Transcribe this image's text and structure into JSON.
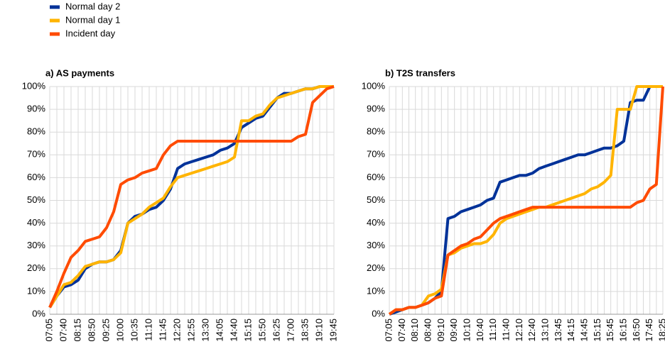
{
  "chart_data": [
    {
      "type": "line",
      "title": "a) AS payments",
      "categories": [
        "07:05",
        null,
        "07:40",
        null,
        "08:15",
        null,
        "08:50",
        null,
        "09:25",
        null,
        "10:00",
        null,
        "10:35",
        null,
        "11:10",
        null,
        "11:45",
        null,
        "12:20",
        null,
        "12:55",
        null,
        "13:30",
        null,
        "14:05",
        null,
        "14:40",
        null,
        "15:15",
        null,
        "15:50",
        null,
        "16:25",
        null,
        "17:00",
        null,
        "18:35",
        null,
        "19:10",
        null,
        "19:45"
      ],
      "series": [
        {
          "name": "Normal day 2",
          "color": "#003299",
          "values": [
            3,
            8,
            12,
            13,
            15,
            20,
            22,
            23,
            23,
            24,
            28,
            40,
            43,
            44,
            46,
            47,
            50,
            55,
            64,
            66,
            67,
            68,
            69,
            70,
            72,
            73,
            75,
            82,
            84,
            86,
            87,
            91,
            95,
            97,
            97,
            98,
            99,
            99,
            100,
            100,
            100
          ]
        },
        {
          "name": "Normal day 1",
          "color": "#ffb400",
          "values": [
            3,
            8,
            13,
            14,
            17,
            21,
            22,
            23,
            23,
            24,
            27,
            40,
            42,
            44,
            47,
            49,
            51,
            56,
            60,
            61,
            62,
            63,
            64,
            65,
            66,
            67,
            69,
            85,
            85,
            87,
            88,
            92,
            95,
            96,
            97,
            98,
            99,
            99,
            100,
            100,
            100
          ]
        },
        {
          "name": "Incident day",
          "color": "#ff4b00",
          "values": [
            3,
            10,
            18,
            25,
            28,
            32,
            33,
            34,
            38,
            45,
            57,
            59,
            60,
            62,
            63,
            64,
            70,
            74,
            76,
            76,
            76,
            76,
            76,
            76,
            76,
            76,
            76,
            76,
            76,
            76,
            76,
            76,
            76,
            76,
            76,
            78,
            79,
            93,
            96,
            99,
            100
          ]
        }
      ],
      "ylim": [
        0,
        100
      ],
      "yticks": [
        {
          "value": 0,
          "label": "0%"
        },
        {
          "value": 10,
          "label": "10%"
        },
        {
          "value": 20,
          "label": "20%"
        },
        {
          "value": 30,
          "label": "30%"
        },
        {
          "value": 40,
          "label": "40%"
        },
        {
          "value": 50,
          "label": "50%"
        },
        {
          "value": 60,
          "label": "60%"
        },
        {
          "value": 70,
          "label": "70%"
        },
        {
          "value": 80,
          "label": "80%"
        },
        {
          "value": 90,
          "label": "90%"
        },
        {
          "value": 100,
          "label": "100%"
        }
      ],
      "grid": true
    },
    {
      "type": "line",
      "title": "b) T2S transfers",
      "categories": [
        "07:05",
        null,
        "07:40",
        null,
        "08:10",
        null,
        "08:40",
        null,
        "09:10",
        null,
        "09:40",
        null,
        "10:10",
        null,
        "10:40",
        null,
        "11:10",
        null,
        "11:40",
        null,
        "12:10",
        null,
        "12:40",
        null,
        "13:10",
        null,
        "13:45",
        null,
        "14:15",
        null,
        "14:45",
        null,
        "15:15",
        null,
        "15:45",
        null,
        "16:15",
        null,
        "16:50",
        null,
        "17:45",
        null,
        "18:25"
      ],
      "series": [
        {
          "color": "#003299",
          "values": [
            0,
            1,
            2,
            3,
            3,
            4,
            5,
            7,
            10,
            42,
            43,
            45,
            46,
            47,
            48,
            50,
            51,
            58,
            59,
            60,
            61,
            61,
            62,
            64,
            65,
            66,
            67,
            68,
            69,
            70,
            70,
            71,
            72,
            73,
            73,
            74,
            76,
            93,
            94,
            94,
            100,
            100,
            100
          ]
        },
        {
          "color": "#ffb400",
          "values": [
            0,
            2,
            2,
            3,
            3,
            4,
            8,
            9,
            11,
            26,
            27,
            29,
            30,
            31,
            31,
            32,
            35,
            40,
            42,
            43,
            44,
            45,
            46,
            47,
            47,
            48,
            49,
            50,
            51,
            52,
            53,
            55,
            56,
            58,
            61,
            90,
            90,
            90,
            100,
            100,
            100,
            100,
            100
          ]
        },
        {
          "color": "#ff4b00",
          "values": [
            0,
            2,
            2,
            3,
            3,
            4,
            5,
            7,
            8,
            26,
            28,
            30,
            31,
            33,
            34,
            37,
            40,
            42,
            43,
            44,
            45,
            46,
            47,
            47,
            47,
            47,
            47,
            47,
            47,
            47,
            47,
            47,
            47,
            47,
            47,
            47,
            47,
            47,
            49,
            50,
            55,
            57,
            100
          ]
        }
      ],
      "ylim": [
        0,
        100
      ],
      "yticks": [
        {
          "value": 0,
          "label": "0%"
        },
        {
          "value": 10,
          "label": "10%"
        },
        {
          "value": 20,
          "label": "20%"
        },
        {
          "value": 30,
          "label": "30%"
        },
        {
          "value": 40,
          "label": "40%"
        },
        {
          "value": 50,
          "label": "50%"
        },
        {
          "value": 60,
          "label": "60%"
        },
        {
          "value": 70,
          "label": "70%"
        },
        {
          "value": 80,
          "label": "80%"
        },
        {
          "value": 90,
          "label": "90%"
        },
        {
          "value": 100,
          "label": "100%"
        }
      ],
      "grid": true
    }
  ]
}
